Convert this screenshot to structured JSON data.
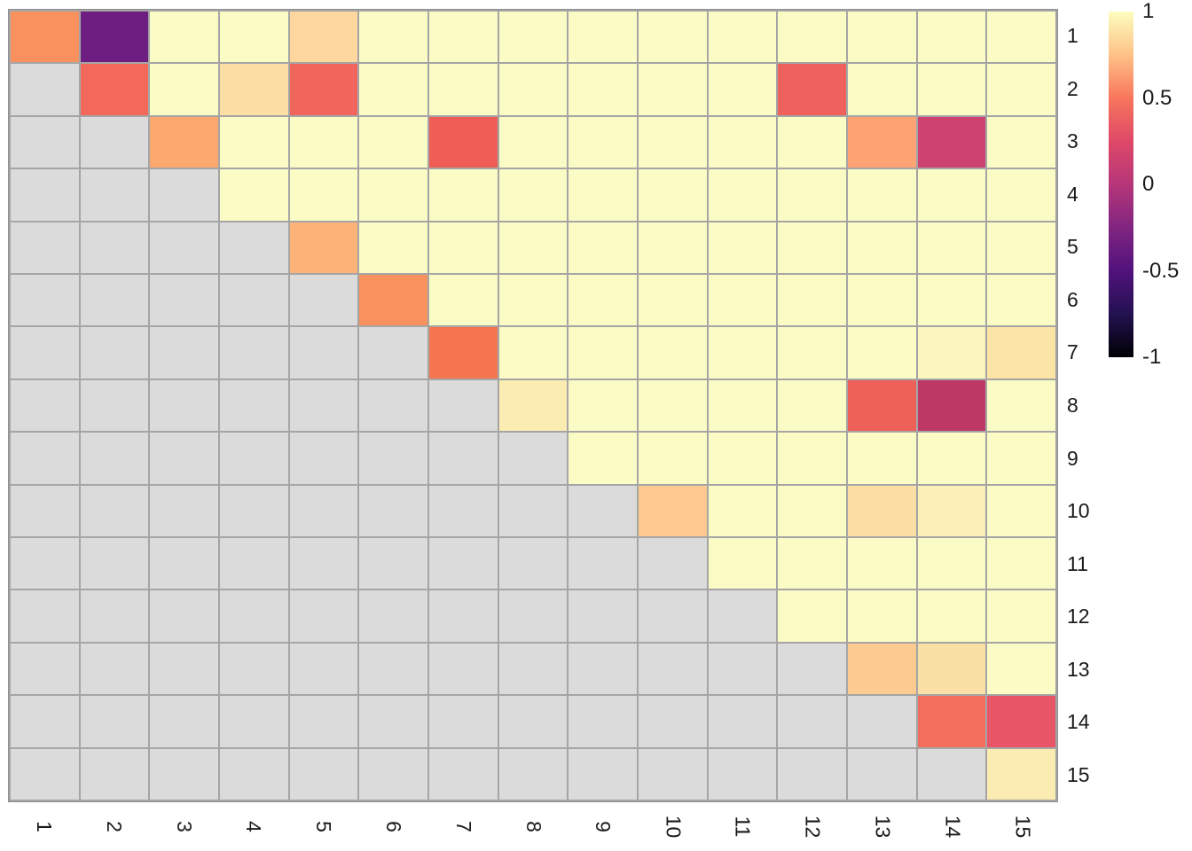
{
  "chart_data": {
    "type": "heatmap",
    "title": "",
    "xlabel": "",
    "ylabel": "",
    "rows": [
      "1",
      "2",
      "3",
      "4",
      "5",
      "6",
      "7",
      "8",
      "9",
      "10",
      "11",
      "12",
      "13",
      "14",
      "15"
    ],
    "cols": [
      "1",
      "2",
      "3",
      "4",
      "5",
      "6",
      "7",
      "8",
      "9",
      "10",
      "11",
      "12",
      "13",
      "14",
      "15"
    ],
    "value_range": [
      -1,
      1
    ],
    "colormap": "magma",
    "na_region": "lower-triangle",
    "na_color": "#DBDBDB",
    "base_color": "#FBFBC6",
    "default_upper_value": 0.95,
    "grid_line_color": "#A5A5A5",
    "cells": [
      {
        "row": 1,
        "col": 1,
        "value": 0.6,
        "color": "#F9915F"
      },
      {
        "row": 1,
        "col": 2,
        "value": -0.45,
        "color": "#6E1E80"
      },
      {
        "row": 1,
        "col": 5,
        "value": 0.78,
        "color": "#FED79E"
      },
      {
        "row": 2,
        "col": 2,
        "value": 0.49,
        "color": "#F2695C"
      },
      {
        "row": 2,
        "col": 4,
        "value": 0.82,
        "color": "#FBDFA5"
      },
      {
        "row": 2,
        "col": 5,
        "value": 0.48,
        "color": "#F0655C"
      },
      {
        "row": 2,
        "col": 12,
        "value": 0.47,
        "color": "#EF615C"
      },
      {
        "row": 3,
        "col": 3,
        "value": 0.67,
        "color": "#FCA86F"
      },
      {
        "row": 3,
        "col": 7,
        "value": 0.46,
        "color": "#EF5E54"
      },
      {
        "row": 3,
        "col": 13,
        "value": 0.66,
        "color": "#FDA272"
      },
      {
        "row": 3,
        "col": 14,
        "value": 0.2,
        "color": "#CE4272"
      },
      {
        "row": 5,
        "col": 5,
        "value": 0.7,
        "color": "#FDB277"
      },
      {
        "row": 6,
        "col": 6,
        "value": 0.6,
        "color": "#F9915E"
      },
      {
        "row": 7,
        "col": 7,
        "value": 0.54,
        "color": "#F67650"
      },
      {
        "row": 7,
        "col": 14,
        "value": 0.91,
        "color": "#FBF5BE"
      },
      {
        "row": 7,
        "col": 15,
        "value": 0.84,
        "color": "#FCE3A6"
      },
      {
        "row": 8,
        "col": 8,
        "value": 0.88,
        "color": "#FBECB2"
      },
      {
        "row": 8,
        "col": 13,
        "value": 0.47,
        "color": "#EE6158"
      },
      {
        "row": 8,
        "col": 14,
        "value": 0.1,
        "color": "#BE3866"
      },
      {
        "row": 10,
        "col": 10,
        "value": 0.75,
        "color": "#FEC98E"
      },
      {
        "row": 10,
        "col": 13,
        "value": 0.82,
        "color": "#FCDFA4"
      },
      {
        "row": 10,
        "col": 14,
        "value": 0.89,
        "color": "#FBF0B8"
      },
      {
        "row": 13,
        "col": 13,
        "value": 0.75,
        "color": "#FDCA90"
      },
      {
        "row": 13,
        "col": 14,
        "value": 0.83,
        "color": "#FBE0A6"
      },
      {
        "row": 14,
        "col": 14,
        "value": 0.5,
        "color": "#F46E5C"
      },
      {
        "row": 14,
        "col": 15,
        "value": 0.4,
        "color": "#E85566"
      },
      {
        "row": 15,
        "col": 15,
        "value": 0.88,
        "color": "#FBEDB2"
      }
    ],
    "colorbar": {
      "position": "right",
      "ticks": [
        {
          "label": "1",
          "value": 1
        },
        {
          "label": "0.5",
          "value": 0.5
        },
        {
          "label": "0",
          "value": 0
        },
        {
          "label": "-0.5",
          "value": -0.5
        },
        {
          "label": "-1",
          "value": -1
        }
      ],
      "gradient_top_to_bottom": [
        "#FCFDBF",
        "#FEC287",
        "#F8765C",
        "#DE4968",
        "#B63679",
        "#812581",
        "#51127C",
        "#231151",
        "#000004"
      ]
    }
  }
}
